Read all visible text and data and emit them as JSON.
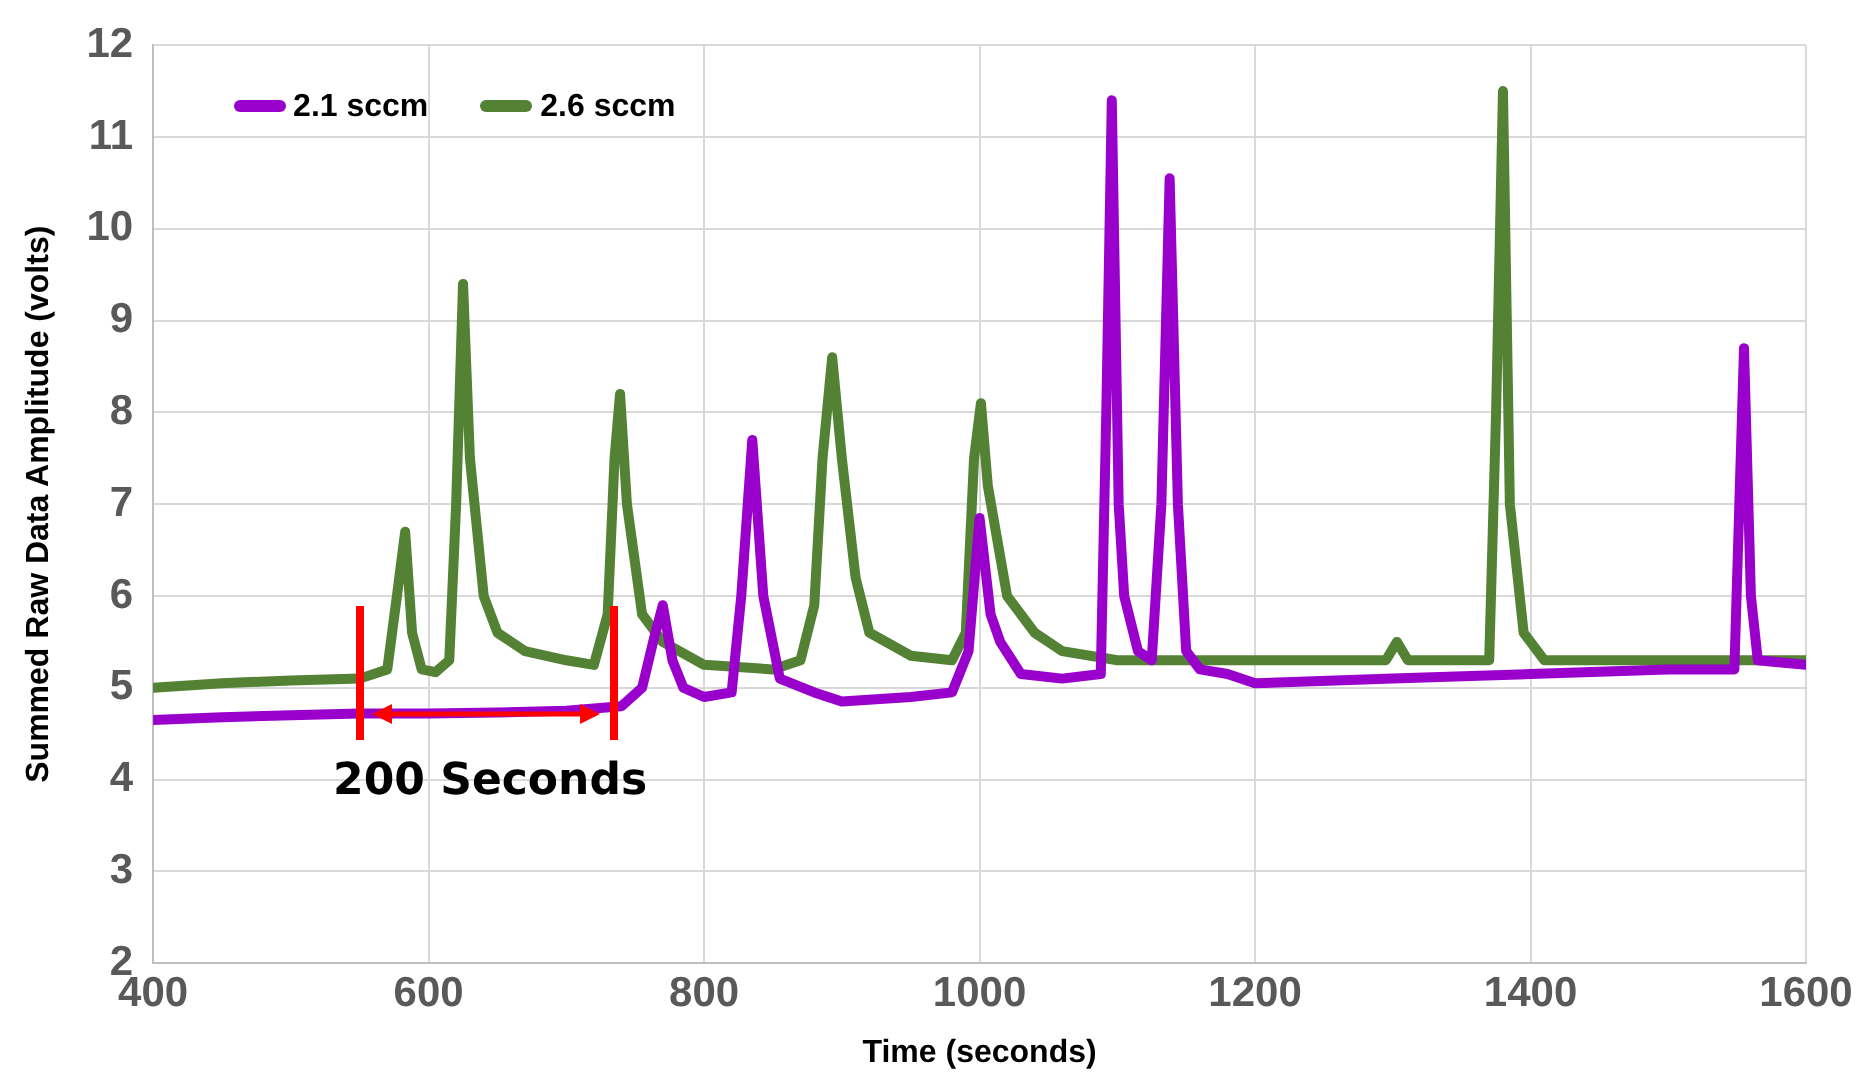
{
  "chart_data": {
    "type": "line",
    "xlabel": "Time (seconds)",
    "ylabel": "Summed Raw Data Amplitude (volts)",
    "xlim": [
      400,
      1600
    ],
    "xticks": [
      400,
      600,
      800,
      1000,
      1200,
      1400,
      1600
    ],
    "ylim": [
      2,
      12
    ],
    "yticks": [
      2,
      3,
      4,
      5,
      6,
      7,
      8,
      9,
      10,
      11,
      12
    ],
    "grid": true,
    "legend": "top left",
    "marker": "none",
    "line_style": "solid",
    "annotations": [
      "200 Seconds"
    ],
    "series": [
      {
        "name": "2.1 sccm",
        "color": "#9900cc",
        "x": [
          400,
          450,
          500,
          550,
          600,
          650,
          700,
          740,
          755,
          763,
          770,
          777,
          785,
          800,
          820,
          827,
          835,
          843,
          855,
          880,
          900,
          950,
          980,
          992,
          1000,
          1008,
          1015,
          1030,
          1060,
          1088,
          1092,
          1096,
          1101,
          1105,
          1115,
          1125,
          1132,
          1138,
          1144,
          1150,
          1160,
          1180,
          1200,
          1300,
          1400,
          1500,
          1548,
          1555,
          1560,
          1565,
          1600
        ],
        "values": [
          4.65,
          4.68,
          4.7,
          4.72,
          4.72,
          4.73,
          4.75,
          4.8,
          5.0,
          5.5,
          5.9,
          5.3,
          5.0,
          4.9,
          4.95,
          6.0,
          7.7,
          6.0,
          5.1,
          4.95,
          4.85,
          4.9,
          4.95,
          5.4,
          6.85,
          5.8,
          5.5,
          5.15,
          5.1,
          5.15,
          8.0,
          11.4,
          7.0,
          6.0,
          5.4,
          5.3,
          7.0,
          10.55,
          7.0,
          5.4,
          5.2,
          5.15,
          5.05,
          5.1,
          5.15,
          5.2,
          5.2,
          8.7,
          6.0,
          5.3,
          5.25
        ]
      },
      {
        "name": "2.6 sccm",
        "color": "#548235",
        "x": [
          400,
          450,
          500,
          550,
          570,
          577,
          583,
          588,
          595,
          605,
          615,
          620,
          625,
          630,
          640,
          650,
          670,
          700,
          720,
          730,
          735,
          739,
          744,
          755,
          770,
          800,
          850,
          870,
          880,
          886,
          893,
          900,
          910,
          920,
          950,
          980,
          990,
          996,
          1001,
          1006,
          1020,
          1040,
          1060,
          1100,
          1200,
          1295,
          1303,
          1311,
          1370,
          1375,
          1380,
          1385,
          1395,
          1410,
          1500,
          1600
        ],
        "values": [
          5.0,
          5.05,
          5.08,
          5.1,
          5.2,
          6.0,
          6.7,
          5.6,
          5.2,
          5.17,
          5.3,
          7.0,
          9.4,
          7.5,
          6.0,
          5.6,
          5.4,
          5.3,
          5.25,
          5.8,
          7.5,
          8.2,
          7.0,
          5.8,
          5.5,
          5.25,
          5.2,
          5.3,
          5.9,
          7.5,
          8.6,
          7.5,
          6.2,
          5.6,
          5.35,
          5.3,
          5.6,
          7.5,
          8.1,
          7.2,
          6.0,
          5.6,
          5.4,
          5.3,
          5.3,
          5.3,
          5.5,
          5.3,
          5.3,
          8.0,
          11.5,
          7.0,
          5.6,
          5.3,
          5.3,
          5.3
        ]
      }
    ]
  }
}
